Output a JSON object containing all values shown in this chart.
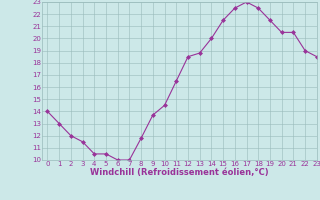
{
  "x": [
    0,
    1,
    2,
    3,
    4,
    5,
    6,
    7,
    8,
    9,
    10,
    11,
    12,
    13,
    14,
    15,
    16,
    17,
    18,
    19,
    20,
    21,
    22,
    23
  ],
  "y": [
    14,
    13,
    12,
    11.5,
    10.5,
    10.5,
    10,
    10,
    11.8,
    13.7,
    14.5,
    16.5,
    18.5,
    18.8,
    20,
    21.5,
    22.5,
    23,
    22.5,
    21.5,
    20.5,
    20.5,
    19,
    18.5
  ],
  "line_color": "#993399",
  "marker_color": "#993399",
  "bg_color": "#cce8e8",
  "grid_color": "#99bbbb",
  "axis_label_color": "#993399",
  "tick_color": "#993399",
  "xlabel": "Windchill (Refroidissement éolien,°C)",
  "ylim": [
    10,
    23
  ],
  "xlim": [
    -0.5,
    23
  ],
  "yticks": [
    10,
    11,
    12,
    13,
    14,
    15,
    16,
    17,
    18,
    19,
    20,
    21,
    22,
    23
  ],
  "xticks": [
    0,
    1,
    2,
    3,
    4,
    5,
    6,
    7,
    8,
    9,
    10,
    11,
    12,
    13,
    14,
    15,
    16,
    17,
    18,
    19,
    20,
    21,
    22,
    23
  ],
  "tick_fontsize": 5,
  "xlabel_fontsize": 6,
  "marker_size": 2,
  "linewidth": 0.8
}
